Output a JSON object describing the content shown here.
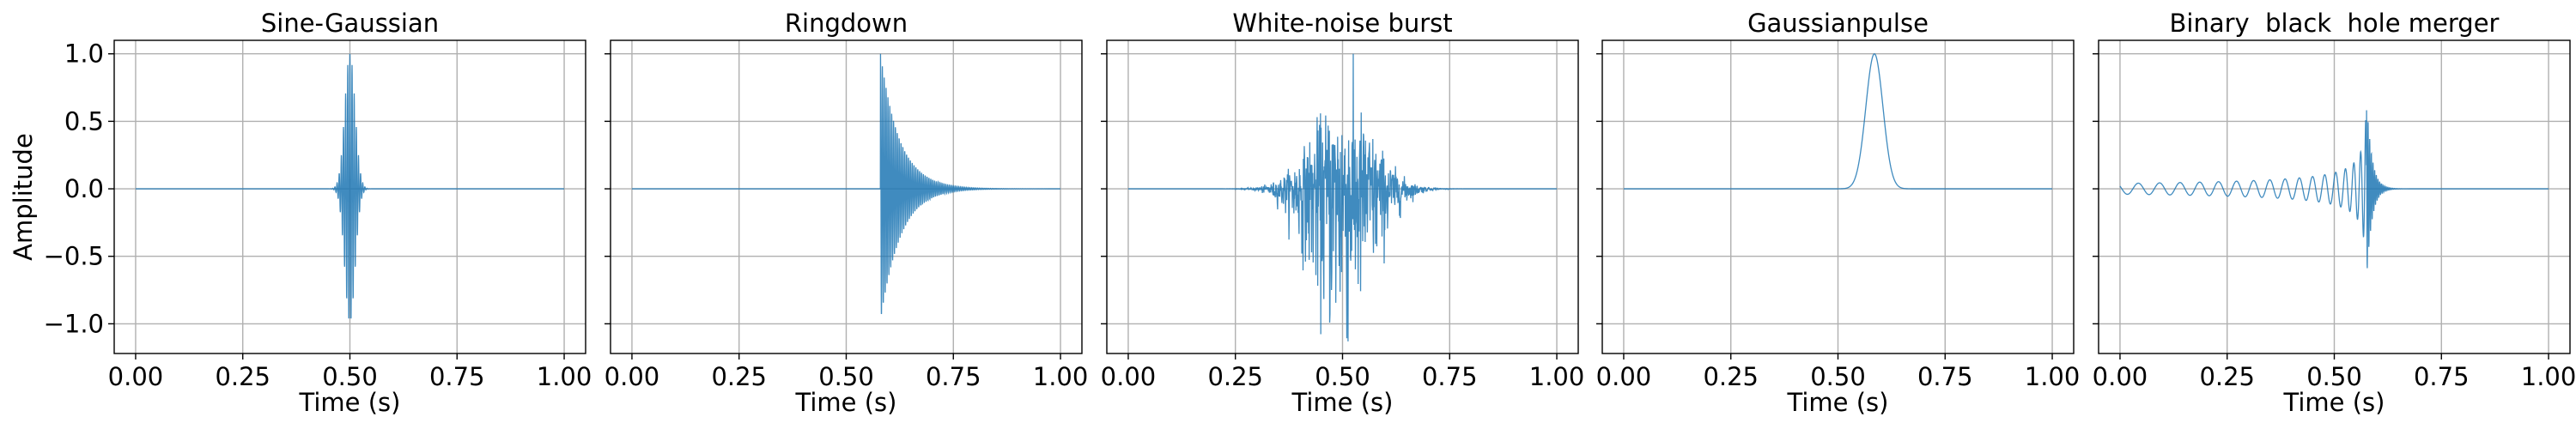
{
  "chart_data": [
    {
      "type": "line",
      "title": "Sine-Gaussian",
      "xlabel": "Time (s)",
      "ylabel": "Amplitude",
      "xlim": [
        -0.05,
        1.05
      ],
      "ylim": [
        -1.22,
        1.1
      ],
      "xticks": [
        "0.00",
        "0.25",
        "0.50",
        "0.75",
        "1.00"
      ],
      "yticks": [
        "1.0",
        "0.5",
        "0.0",
        "−0.5",
        "−1.0"
      ],
      "grid": true,
      "line_color": "#1f77b4",
      "series": [
        {
          "kind": "sine-gaussian",
          "center": 0.5,
          "width": 0.012,
          "frequency": 200,
          "amplitude": 1.0
        }
      ]
    },
    {
      "type": "line",
      "title": "Ringdown",
      "xlabel": "Time (s)",
      "ylabel": "",
      "xlim": [
        -0.05,
        1.05
      ],
      "ylim": [
        -1.22,
        1.1
      ],
      "xticks": [
        "0.00",
        "0.25",
        "0.50",
        "0.75",
        "1.00"
      ],
      "yticks": [],
      "grid": true,
      "line_color": "#1f77b4",
      "series": [
        {
          "kind": "ringdown",
          "start": 0.58,
          "decay": 0.045,
          "frequency": 230,
          "amplitude": 1.0
        }
      ]
    },
    {
      "type": "line",
      "title": "White-noise burst",
      "xlabel": "Time (s)",
      "ylabel": "",
      "xlim": [
        -0.05,
        1.05
      ],
      "ylim": [
        -1.22,
        1.1
      ],
      "xticks": [
        "0.00",
        "0.25",
        "0.50",
        "0.75",
        "1.00"
      ],
      "yticks": [],
      "grid": true,
      "line_color": "#1f77b4",
      "series": [
        {
          "kind": "noise-burst",
          "center": 0.5,
          "width": 0.07,
          "amplitude": 1.0,
          "min": -1.13
        }
      ]
    },
    {
      "type": "line",
      "title": "Gaussianpulse",
      "xlabel": "Time (s)",
      "ylabel": "",
      "xlim": [
        -0.05,
        1.05
      ],
      "ylim": [
        -1.22,
        1.1
      ],
      "xticks": [
        "0.00",
        "0.25",
        "0.50",
        "0.75",
        "1.00"
      ],
      "yticks": [],
      "grid": true,
      "line_color": "#1f77b4",
      "series": [
        {
          "kind": "gaussian",
          "center": 0.585,
          "width": 0.02,
          "amplitude": 1.0
        }
      ]
    },
    {
      "type": "line",
      "title": "Binary  black  hole merger",
      "xlabel": "Time (s)",
      "ylabel": "",
      "xlim": [
        -0.05,
        1.05
      ],
      "ylim": [
        -1.22,
        1.1
      ],
      "xticks": [
        "0.00",
        "0.25",
        "0.50",
        "0.75",
        "1.00"
      ],
      "yticks": [],
      "grid": true,
      "line_color": "#1f77b4",
      "series": [
        {
          "kind": "chirp",
          "start": 0.0,
          "merger": 0.575,
          "amplitude": 1.0
        }
      ]
    }
  ]
}
